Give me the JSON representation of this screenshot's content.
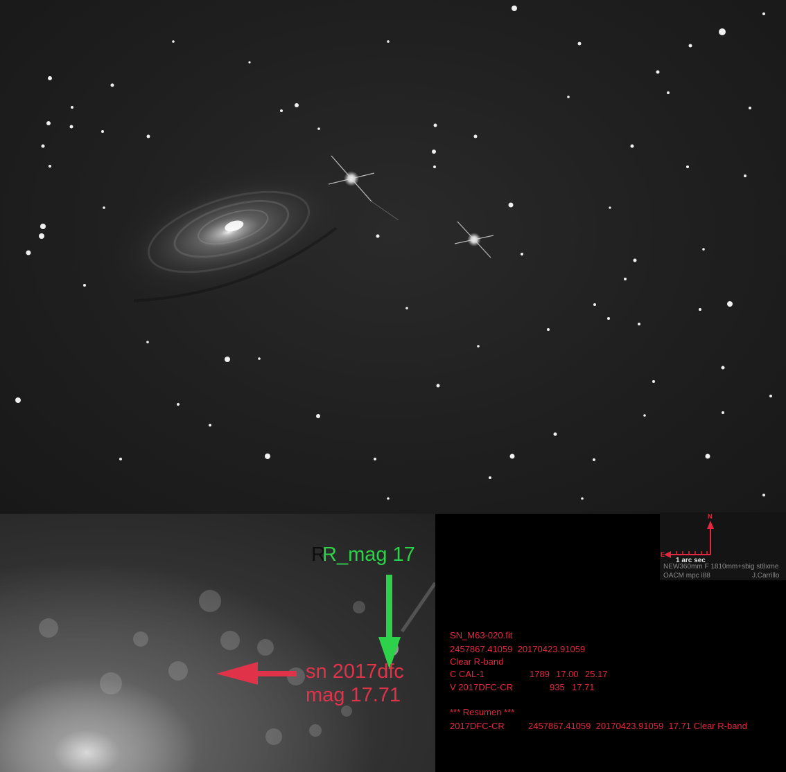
{
  "zoom_annotations": {
    "reference_star": "R_mag 17",
    "reference_shadow": "R",
    "supernova_name": "sn 2017dfc",
    "supernova_mag": "mag 17.71",
    "reference_arrow_color": "#2dd24a",
    "supernova_arrow_color": "#e0334a"
  },
  "photometry": {
    "filename": "SN_M63-020.fit",
    "jd_date": "2457867.41059  20170423.91059",
    "filter": "Clear R-band",
    "comp_row": {
      "label": "C CAL-1",
      "counts": "1789",
      "mag": "17.00",
      "zp": "25.17"
    },
    "var_row": {
      "label": "V 2017DFC-CR",
      "counts": "935",
      "mag": "17.71"
    },
    "summary_header": "*** Resumen ***",
    "summary_row": {
      "object": "2017DFC-CR",
      "values": "2457867.41059  20170423.91059  17.71 Clear R-band"
    }
  },
  "scale_box": {
    "north": "N",
    "east": "E",
    "scale_label": "1 arc sec",
    "telescope": "NEW360mm F 1810mm+sbig st8xme",
    "observatory": "OACM mpc i88",
    "observer": "J.Carrillo",
    "arrow_color": "#e3283f"
  }
}
